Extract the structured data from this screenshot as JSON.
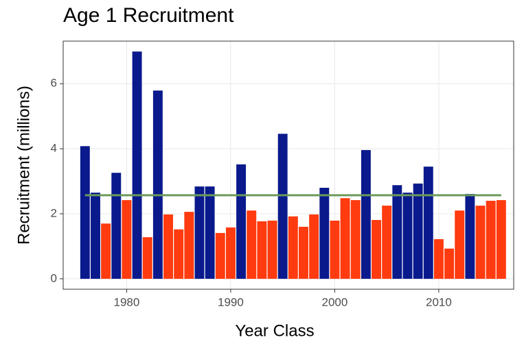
{
  "chart_data": {
    "type": "bar",
    "title": "Age 1 Recruitment",
    "x_label": "Year Class",
    "y_label": "Recruitment (millions)",
    "x": [
      1976,
      1977,
      1978,
      1979,
      1980,
      1981,
      1982,
      1983,
      1984,
      1985,
      1986,
      1987,
      1988,
      1989,
      1990,
      1991,
      1992,
      1993,
      1994,
      1995,
      1996,
      1997,
      1998,
      1999,
      2000,
      2001,
      2002,
      2003,
      2004,
      2005,
      2006,
      2007,
      2008,
      2009,
      2010,
      2011,
      2012,
      2013,
      2014,
      2015,
      2016
    ],
    "values": [
      4.08,
      2.65,
      1.7,
      3.26,
      2.42,
      6.99,
      1.28,
      5.79,
      1.98,
      1.52,
      2.06,
      2.84,
      2.84,
      1.41,
      1.58,
      3.52,
      2.1,
      1.77,
      1.79,
      4.46,
      1.92,
      1.6,
      1.98,
      2.8,
      1.79,
      2.48,
      2.42,
      3.96,
      1.81,
      2.25,
      2.88,
      2.65,
      2.93,
      3.45,
      1.22,
      0.93,
      2.1,
      2.61,
      2.25,
      2.4,
      2.42
    ],
    "colors": [
      "#0a1a8c",
      "#0a1a8c",
      "#ff3b0f",
      "#0a1a8c",
      "#ff3b0f",
      "#0a1a8c",
      "#ff3b0f",
      "#0a1a8c",
      "#ff3b0f",
      "#ff3b0f",
      "#ff3b0f",
      "#0a1a8c",
      "#0a1a8c",
      "#ff3b0f",
      "#ff3b0f",
      "#0a1a8c",
      "#ff3b0f",
      "#ff3b0f",
      "#ff3b0f",
      "#0a1a8c",
      "#ff3b0f",
      "#ff3b0f",
      "#ff3b0f",
      "#0a1a8c",
      "#ff3b0f",
      "#ff3b0f",
      "#ff3b0f",
      "#0a1a8c",
      "#ff3b0f",
      "#ff3b0f",
      "#0a1a8c",
      "#0a1a8c",
      "#0a1a8c",
      "#0a1a8c",
      "#ff3b0f",
      "#ff3b0f",
      "#ff3b0f",
      "#0a1a8c",
      "#ff3b0f",
      "#ff3b0f",
      "#ff3b0f"
    ],
    "mean_line": {
      "value": 2.57,
      "color": "#6a9a5a"
    },
    "xlim": [
      1973.9,
      2017.2
    ],
    "xticks": [
      1980,
      1990,
      2000,
      2010
    ],
    "ylim": [
      -0.32,
      7.31
    ],
    "yticks": [
      0,
      2,
      4,
      6
    ],
    "grid": true
  }
}
